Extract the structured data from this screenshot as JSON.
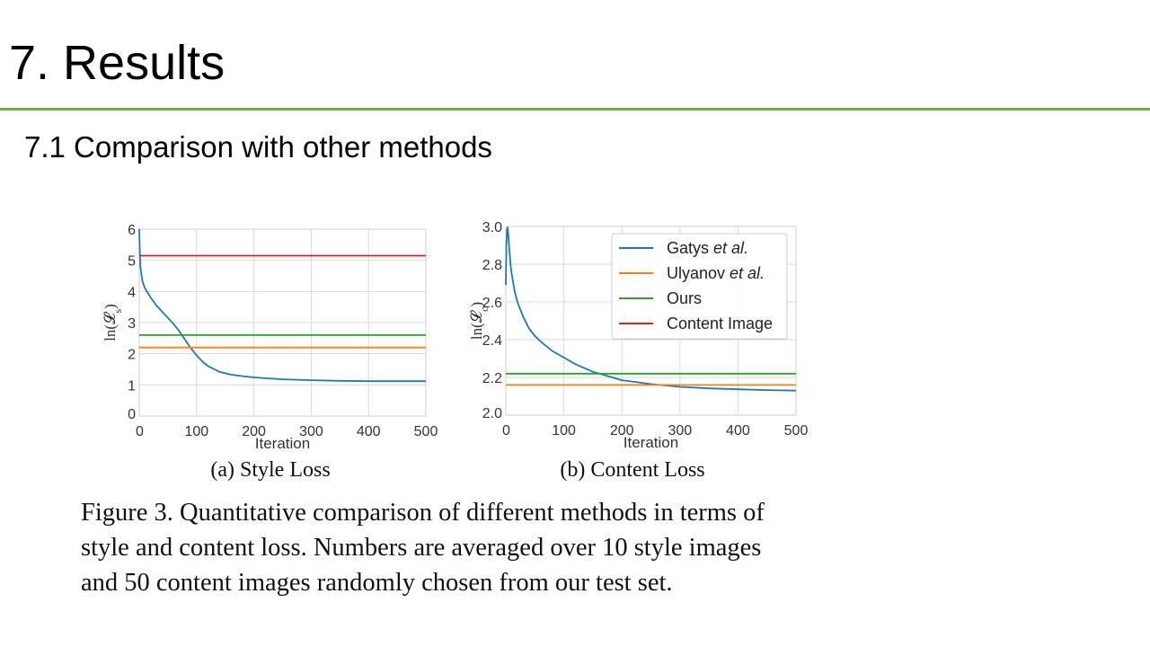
{
  "slide": {
    "title": "7. Results",
    "subtitle": "7.1 Comparison with other methods"
  },
  "caption_lines": [
    "Figure 3. Quantitative comparison of different methods in terms of",
    "style and content loss. Numbers are averaged over 10 style images",
    "and 50 content images randomly chosen from our test set."
  ],
  "colors": {
    "accent_rule": "#70ad47",
    "gatys": "#1f77b4",
    "ulyanov": "#ff7f0e",
    "ours": "#2ca02c",
    "content_image": "#d62728"
  },
  "chart_data": [
    {
      "type": "line",
      "subcaption": "(a)  Style Loss",
      "xlabel": "Iteration",
      "ylabel": "ln(𝓛",
      "ylabel_sub": "s",
      "ylabel_close": ")",
      "xlim": [
        0,
        500
      ],
      "ylim": [
        0,
        6
      ],
      "xticks": [
        0,
        100,
        200,
        300,
        400,
        500
      ],
      "yticks": [
        0,
        1,
        2,
        3,
        4,
        5,
        6
      ],
      "xtick_labels": [
        "0",
        "100",
        "200",
        "300",
        "400",
        "500"
      ],
      "ytick_labels": [
        "0",
        "1",
        "2",
        "3",
        "4",
        "5",
        "6"
      ],
      "grid": true,
      "series": [
        {
          "name": "Gatys et al.",
          "color": "#1f77b4",
          "x": [
            0,
            1,
            2,
            4,
            6,
            10,
            15,
            20,
            30,
            40,
            50,
            60,
            70,
            80,
            90,
            100,
            110,
            120,
            140,
            160,
            180,
            200,
            250,
            300,
            350,
            400,
            450,
            500
          ],
          "y": [
            6.0,
            5.3,
            4.8,
            4.5,
            4.3,
            4.1,
            3.95,
            3.8,
            3.55,
            3.35,
            3.15,
            2.95,
            2.72,
            2.45,
            2.18,
            1.95,
            1.75,
            1.6,
            1.42,
            1.33,
            1.28,
            1.24,
            1.18,
            1.15,
            1.13,
            1.12,
            1.12,
            1.12
          ]
        },
        {
          "name": "Ulyanov et al.",
          "color": "#ff7f0e",
          "x": [
            0,
            500
          ],
          "y": [
            2.2,
            2.2
          ]
        },
        {
          "name": "Ours",
          "color": "#2ca02c",
          "x": [
            0,
            500
          ],
          "y": [
            2.6,
            2.6
          ]
        },
        {
          "name": "Content Image",
          "color": "#d62728",
          "x": [
            0,
            500
          ],
          "y": [
            5.15,
            5.15
          ]
        }
      ]
    },
    {
      "type": "line",
      "subcaption": "(b)  Content Loss",
      "xlabel": "Iteration",
      "ylabel": "ln(𝓛",
      "ylabel_sub": "c",
      "ylabel_close": ")",
      "xlim": [
        0,
        500
      ],
      "ylim": [
        2.0,
        3.0
      ],
      "xticks": [
        0,
        100,
        200,
        300,
        400,
        500
      ],
      "yticks": [
        2.0,
        2.2,
        2.4,
        2.6,
        2.8,
        3.0
      ],
      "xtick_labels": [
        "0",
        "100",
        "200",
        "300",
        "400",
        "500"
      ],
      "ytick_labels": [
        "2.0",
        "2.2",
        "2.4",
        "2.6",
        "2.8",
        "3.0"
      ],
      "grid": true,
      "legend": {
        "position": "top-right",
        "entries": [
          {
            "prefix": "Gatys ",
            "suffix": "et al.",
            "color": "#1f77b4"
          },
          {
            "prefix": "Ulyanov ",
            "suffix": "et al.",
            "color": "#ff7f0e"
          },
          {
            "prefix": "Ours",
            "suffix": "",
            "color": "#2ca02c"
          },
          {
            "prefix": "Content Image",
            "suffix": "",
            "color": "#d62728"
          }
        ]
      },
      "series": [
        {
          "name": "Gatys et al.",
          "color": "#1f77b4",
          "x": [
            0,
            1,
            2,
            3,
            4,
            6,
            8,
            10,
            15,
            20,
            30,
            40,
            50,
            60,
            80,
            100,
            120,
            150,
            200,
            250,
            300,
            350,
            400,
            450,
            500
          ],
          "y": [
            2.69,
            2.9,
            2.98,
            2.995,
            2.97,
            2.88,
            2.8,
            2.75,
            2.66,
            2.6,
            2.52,
            2.46,
            2.42,
            2.39,
            2.34,
            2.305,
            2.27,
            2.23,
            2.185,
            2.165,
            2.15,
            2.142,
            2.137,
            2.133,
            2.13
          ]
        },
        {
          "name": "Ulyanov et al.",
          "color": "#ff7f0e",
          "x": [
            0,
            500
          ],
          "y": [
            2.16,
            2.16
          ]
        },
        {
          "name": "Ours",
          "color": "#2ca02c",
          "x": [
            0,
            500
          ],
          "y": [
            2.22,
            2.22
          ]
        },
        {
          "name": "Content Image",
          "color": "#d62728",
          "x": [],
          "y": []
        }
      ]
    }
  ]
}
